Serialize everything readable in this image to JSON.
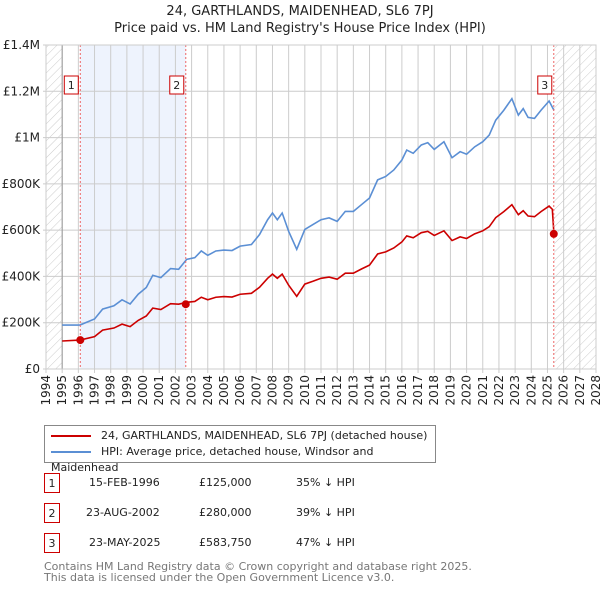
{
  "title": "24, GARTHLANDS, MAIDENHEAD, SL6 7PJ",
  "subtitle": "Price paid vs. HM Land Registry's House Price Index (HPI)",
  "chart_data": {
    "type": "line",
    "ylim": [
      0,
      1400000
    ],
    "xlim": [
      1994,
      2028
    ],
    "yticks": [
      {
        "v": 0,
        "label": "£0"
      },
      {
        "v": 200000,
        "label": "£200K"
      },
      {
        "v": 400000,
        "label": "£400K"
      },
      {
        "v": 600000,
        "label": "£600K"
      },
      {
        "v": 800000,
        "label": "£800K"
      },
      {
        "v": 1000000,
        "label": "£1M"
      },
      {
        "v": 1200000,
        "label": "£1.2M"
      },
      {
        "v": 1400000,
        "label": "£1.4M"
      }
    ],
    "xticks": [
      "1994",
      "1995",
      "1996",
      "1997",
      "1998",
      "1999",
      "2000",
      "2001",
      "2002",
      "2003",
      "2004",
      "2005",
      "2006",
      "2007",
      "2008",
      "2009",
      "2010",
      "2011",
      "2012",
      "2013",
      "2014",
      "2015",
      "2016",
      "2017",
      "2018",
      "2019",
      "2020",
      "2021",
      "2022",
      "2023",
      "2024",
      "2025",
      "2026",
      "2027",
      "2028"
    ],
    "data_start": 1995,
    "data_end": 2025.4,
    "shaded_range": [
      1996.12,
      2002.64
    ],
    "series": [
      {
        "name": "HPI: Average price, detached house, Windsor and Maidenhead",
        "color": "#5b8fd4",
        "x": [
          1995,
          1996.1,
          1997,
          1997.5,
          1998.2,
          1998.7,
          1999.2,
          1999.7,
          2000.2,
          2000.6,
          2001.1,
          2001.7,
          2002.2,
          2002.7,
          2003.2,
          2003.6,
          2004,
          2004.5,
          2005,
          2005.5,
          2006,
          2006.7,
          2007.2,
          2007.7,
          2008,
          2008.3,
          2008.6,
          2009,
          2009.5,
          2010,
          2010.5,
          2011,
          2011.5,
          2012,
          2012.5,
          2013,
          2013.5,
          2014,
          2014.5,
          2015,
          2015.5,
          2016,
          2016.3,
          2016.7,
          2017.2,
          2017.6,
          2018,
          2018.6,
          2019.1,
          2019.6,
          2020,
          2020.5,
          2021,
          2021.4,
          2021.8,
          2022.3,
          2022.8,
          2023.2,
          2023.5,
          2023.8,
          2024.2,
          2024.6,
          2025.1,
          2025.4
        ],
        "y": [
          190,
          190,
          216,
          259,
          273,
          299,
          281,
          323,
          352,
          405,
          395,
          434,
          431,
          474,
          481,
          510,
          491,
          510,
          514,
          512,
          531,
          538,
          581,
          645,
          674,
          645,
          674,
          595,
          517,
          603,
          624,
          645,
          653,
          638,
          681,
          681,
          710,
          739,
          817,
          832,
          860,
          903,
          946,
          932,
          968,
          978,
          949,
          982,
          913,
          939,
          928,
          960,
          982,
          1011,
          1075,
          1118,
          1168,
          1097,
          1125,
          1087,
          1083,
          1118,
          1158,
          1118
        ]
      },
      {
        "name": "24, GARTHLANDS, MAIDENHEAD, SL6 7PJ (detached house)",
        "color": "#cc0000",
        "x": [
          1995,
          1996.1,
          1997,
          1997.5,
          1998.2,
          1998.7,
          1999.2,
          1999.7,
          2000.2,
          2000.6,
          2001.1,
          2001.7,
          2002.2,
          2002.7,
          2003.2,
          2003.6,
          2004,
          2004.5,
          2005,
          2005.5,
          2006,
          2006.7,
          2007.2,
          2007.7,
          2008,
          2008.3,
          2008.6,
          2009,
          2009.5,
          2010,
          2010.5,
          2011,
          2011.5,
          2012,
          2012.5,
          2013,
          2013.5,
          2014,
          2014.5,
          2015,
          2015.5,
          2016,
          2016.3,
          2016.7,
          2017.2,
          2017.6,
          2018,
          2018.6,
          2019.1,
          2019.6,
          2020,
          2020.5,
          2021,
          2021.4,
          2021.8,
          2022.3,
          2022.8,
          2023.2,
          2023.5,
          2023.8,
          2024.2,
          2024.6,
          2025.1,
          2025.3,
          2025.4
        ],
        "y": [
          121,
          125,
          140,
          168,
          177,
          194,
          183,
          210,
          229,
          263,
          257,
          282,
          280,
          288,
          292,
          310,
          299,
          310,
          313,
          311,
          323,
          327,
          353,
          392,
          410,
          392,
          410,
          362,
          314,
          367,
          379,
          392,
          397,
          388,
          414,
          414,
          432,
          449,
          497,
          506,
          523,
          549,
          575,
          567,
          589,
          595,
          577,
          597,
          555,
          571,
          564,
          584,
          597,
          615,
          654,
          680,
          710,
          667,
          684,
          661,
          658,
          680,
          704,
          690,
          584
        ]
      }
    ],
    "y_unit": "thousand GBP",
    "sales": [
      {
        "label": "1",
        "x": 1996.12,
        "y": 125000
      },
      {
        "label": "2",
        "x": 2002.64,
        "y": 280000
      },
      {
        "label": "3",
        "x": 2025.39,
        "y": 583750
      }
    ]
  },
  "legend": {
    "property": "24, GARTHLANDS, MAIDENHEAD, SL6 7PJ (detached house)",
    "hpi": "HPI: Average price, detached house, Windsor and Maidenhead"
  },
  "transactions": [
    {
      "num": "1",
      "date": "15-FEB-1996",
      "price": "£125,000",
      "delta": "35% ↓ HPI"
    },
    {
      "num": "2",
      "date": "23-AUG-2002",
      "price": "£280,000",
      "delta": "39% ↓ HPI"
    },
    {
      "num": "3",
      "date": "23-MAY-2025",
      "price": "£583,750",
      "delta": "47% ↓ HPI"
    }
  ],
  "footer": {
    "line1": "Contains HM Land Registry data © Crown copyright and database right 2025.",
    "line2": "This data is licensed under the Open Government Licence v3.0."
  }
}
